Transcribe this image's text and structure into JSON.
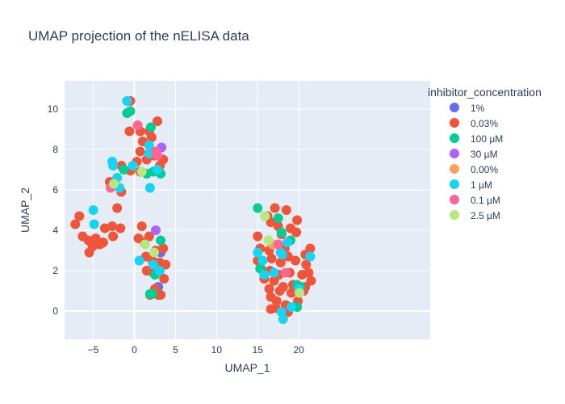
{
  "chart_data": {
    "type": "scatter",
    "title": "UMAP projection of the nELISA data",
    "xlabel": "UMAP_1",
    "ylabel": "UMAP_2",
    "xlim": [
      -8.5,
      36
    ],
    "ylim": [
      -1.4,
      11.4
    ],
    "xticks": [
      -5,
      0,
      5,
      10,
      15,
      20
    ],
    "xtick_labels": [
      "−5",
      "0",
      "5",
      "10",
      "15",
      "20"
    ],
    "yticks": [
      0,
      2,
      4,
      6,
      8,
      10
    ],
    "ytick_labels": [
      "0",
      "2",
      "4",
      "6",
      "8",
      "10"
    ],
    "grid": true,
    "plot_bgcolor": "#E5ECF6",
    "legend": {
      "title": "inhibitor_concentration",
      "position": "top-right"
    },
    "series": [
      {
        "name": "1%",
        "color": "#636EFA",
        "points": [
          [
            3.2,
            2.9
          ],
          [
            2.9,
            1.2
          ]
        ]
      },
      {
        "name": "0.03%",
        "color": "#EF553B",
        "points": [
          [
            -0.5,
            10.4
          ],
          [
            -0.6,
            8.9
          ],
          [
            0.7,
            8.9
          ],
          [
            1.8,
            8.9
          ],
          [
            2.8,
            9.4
          ],
          [
            1.0,
            8.4
          ],
          [
            2.1,
            8.6
          ],
          [
            0.7,
            7.9
          ],
          [
            2.4,
            7.7
          ],
          [
            1.5,
            7.5
          ],
          [
            3.5,
            7.5
          ],
          [
            0.3,
            7.4
          ],
          [
            3.1,
            7.2
          ],
          [
            -1.6,
            7.2
          ],
          [
            -0.5,
            6.95
          ],
          [
            0.7,
            6.9
          ],
          [
            -3.0,
            6.4
          ],
          [
            -1.6,
            5.9
          ],
          [
            -7.2,
            4.3
          ],
          [
            -6.7,
            4.7
          ],
          [
            -2.1,
            5.1
          ],
          [
            -3.6,
            4.1
          ],
          [
            -2.7,
            4.2
          ],
          [
            -6.3,
            3.7
          ],
          [
            -5.6,
            3.5
          ],
          [
            -4.7,
            3.6
          ],
          [
            -3.8,
            3.4
          ],
          [
            -5.1,
            3.2
          ],
          [
            -4.2,
            3.3
          ],
          [
            -5.5,
            2.9
          ],
          [
            -2.6,
            3.7
          ],
          [
            -1.7,
            4.1
          ],
          [
            0.5,
            3.6
          ],
          [
            0.9,
            4.2
          ],
          [
            1.2,
            3.4
          ],
          [
            1.8,
            3.7
          ],
          [
            2.6,
            3.0
          ],
          [
            3.5,
            3.1
          ],
          [
            1.4,
            2.7
          ],
          [
            2.2,
            2.5
          ],
          [
            3.1,
            2.4
          ],
          [
            3.8,
            2.3
          ],
          [
            1.5,
            2.0
          ],
          [
            2.3,
            1.9
          ],
          [
            3.6,
            1.6
          ],
          [
            2.5,
            1.1
          ],
          [
            3.2,
            0.8
          ],
          [
            2.9,
            0.8
          ],
          [
            1.9,
            0.8
          ],
          [
            15.0,
            3.7
          ],
          [
            16.2,
            4.7
          ],
          [
            17.1,
            5.1
          ],
          [
            18.5,
            5.0
          ],
          [
            19.8,
            4.5
          ],
          [
            16.6,
            4.4
          ],
          [
            17.5,
            4.2
          ],
          [
            19.0,
            4.1
          ],
          [
            19.7,
            3.9
          ],
          [
            17.9,
            3.8
          ],
          [
            15.3,
            3.1
          ],
          [
            16.4,
            3.0
          ],
          [
            18.3,
            3.1
          ],
          [
            20.8,
            2.8
          ],
          [
            21.4,
            3.1
          ],
          [
            15.0,
            2.5
          ],
          [
            16.7,
            2.6
          ],
          [
            17.8,
            2.4
          ],
          [
            18.7,
            2.7
          ],
          [
            19.6,
            2.5
          ],
          [
            20.9,
            2.3
          ],
          [
            15.4,
            2.1
          ],
          [
            16.5,
            2.0
          ],
          [
            17.6,
            1.8
          ],
          [
            18.9,
            1.9
          ],
          [
            20.4,
            1.8
          ],
          [
            21.2,
            1.9
          ],
          [
            15.8,
            1.6
          ],
          [
            17.0,
            1.5
          ],
          [
            18.1,
            1.2
          ],
          [
            19.3,
            1.3
          ],
          [
            20.3,
            1.2
          ],
          [
            21.5,
            1.5
          ],
          [
            16.4,
            1.1
          ],
          [
            17.7,
            1.0
          ],
          [
            19.1,
            0.9
          ],
          [
            20.6,
            1.0
          ],
          [
            16.6,
            0.7
          ],
          [
            17.3,
            0.5
          ],
          [
            18.4,
            0.3
          ],
          [
            16.6,
            0.1
          ],
          [
            17.2,
            0.15
          ],
          [
            18.7,
            -0.05
          ],
          [
            19.9,
            0.5
          ],
          [
            20.8,
            1.2
          ]
        ]
      },
      {
        "name": "100 µM",
        "color": "#00CC96",
        "points": [
          [
            -0.9,
            9.8
          ],
          [
            -0.5,
            9.9
          ],
          [
            2.0,
            9.1
          ],
          [
            -1.3,
            7.0
          ],
          [
            1.5,
            6.8
          ],
          [
            2.3,
            6.9
          ],
          [
            3.2,
            6.8
          ],
          [
            3.2,
            3.5
          ],
          [
            2.5,
            1.8
          ],
          [
            1.9,
            0.85
          ],
          [
            2.2,
            0.85
          ],
          [
            15.0,
            5.1
          ],
          [
            17.9,
            3.9
          ],
          [
            19.0,
            3.5
          ],
          [
            15.3,
            2.1
          ],
          [
            19.8,
            0.2
          ],
          [
            19.8,
            1.3
          ],
          [
            20.2,
            1.2
          ],
          [
            17.5,
            4.6
          ]
        ]
      },
      {
        "name": "30 µM",
        "color": "#AB63FA",
        "points": [
          [
            3.3,
            8.1
          ],
          [
            2.6,
            4.0
          ]
        ]
      },
      {
        "name": "0.00%",
        "color": "#FFA15A",
        "points": [
          [
            16.8,
            3.3
          ]
        ]
      },
      {
        "name": "1 µM",
        "color": "#19D3F3",
        "points": [
          [
            -0.9,
            10.4
          ],
          [
            1.8,
            8.2
          ],
          [
            1.8,
            7.8
          ],
          [
            -2.7,
            7.4
          ],
          [
            -2.6,
            7.2
          ],
          [
            -0.2,
            7.2
          ],
          [
            -2.1,
            6.6
          ],
          [
            -1.8,
            6.1
          ],
          [
            1.9,
            6.1
          ],
          [
            2.8,
            7.0
          ],
          [
            -5.0,
            5.0
          ],
          [
            -4.9,
            4.3
          ],
          [
            0.6,
            2.5
          ],
          [
            2.3,
            2.3
          ],
          [
            3.1,
            2.0
          ],
          [
            15.0,
            2.9
          ],
          [
            15.6,
            2.5
          ],
          [
            15.8,
            1.8
          ],
          [
            17.0,
            1.9
          ],
          [
            17.8,
            2.9
          ],
          [
            18.6,
            3.4
          ],
          [
            18.0,
            2.8
          ],
          [
            17.9,
            -0.05
          ],
          [
            18.1,
            -0.4
          ],
          [
            19.1,
            0.2
          ],
          [
            21.4,
            2.7
          ],
          [
            20.0,
            1.1
          ]
        ]
      },
      {
        "name": "0.1 µM",
        "color": "#FF6692",
        "points": [
          [
            0.4,
            9.2
          ],
          [
            2.6,
            7.9
          ],
          [
            2.8,
            7.7
          ],
          [
            -2.9,
            6.1
          ],
          [
            17.5,
            3.3
          ],
          [
            18.4,
            1.9
          ]
        ]
      },
      {
        "name": "2.5 µM",
        "color": "#B6E880",
        "points": [
          [
            -2.5,
            6.3
          ],
          [
            0.9,
            6.9
          ],
          [
            1.3,
            3.3
          ],
          [
            2.4,
            2.9
          ],
          [
            15.9,
            4.7
          ],
          [
            16.3,
            3.5
          ],
          [
            20.1,
            0.9
          ]
        ]
      }
    ]
  }
}
